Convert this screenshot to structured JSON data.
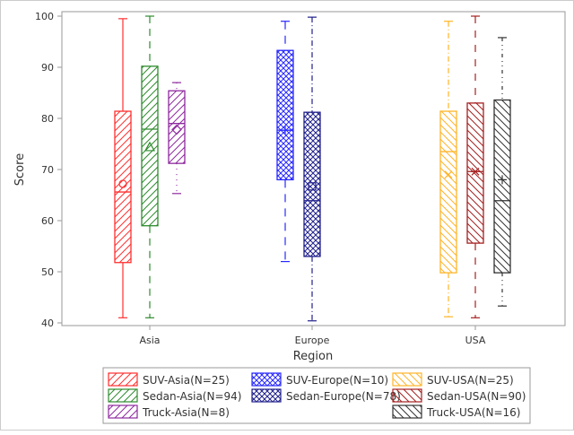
{
  "chart_data": {
    "type": "box",
    "title": "",
    "xlabel": "Region",
    "ylabel": "Score",
    "ylim": [
      40,
      100
    ],
    "yticks": [
      "40",
      "50",
      "60",
      "70",
      "80",
      "90",
      "100"
    ],
    "categories": [
      "Asia",
      "Europe",
      "USA"
    ],
    "grid": false,
    "legend_position": "bottom",
    "series": [
      {
        "name": "SUV-Asia(N=25)",
        "category": "Asia",
        "color": "#ff3030",
        "pattern": "hatch-right",
        "marker": "circle",
        "min": 41,
        "q1": 51.8,
        "median": 65.6,
        "mean": 67.2,
        "q3": 81.4,
        "max": 99.5
      },
      {
        "name": "Sedan-Asia(N=94)",
        "category": "Asia",
        "color": "#2e8b2e",
        "pattern": "hatch-right",
        "marker": "triangle",
        "min": 41,
        "q1": 59,
        "median": 77.9,
        "mean": 74.4,
        "q3": 90.2,
        "max": 100
      },
      {
        "name": "Truck-Asia(N=8)",
        "category": "Asia",
        "color": "#8e2a9e",
        "pattern": "hatch-right",
        "marker": "diamond",
        "min": 65.3,
        "q1": 71.2,
        "median": 79,
        "mean": 77.8,
        "q3": 85.4,
        "max": 87
      },
      {
        "name": "SUV-Europe(N=10)",
        "category": "Europe",
        "color": "#2828ff",
        "pattern": "crosshatch",
        "marker": "plus",
        "min": 52,
        "q1": 68,
        "median": 77.7,
        "mean": 77.7,
        "q3": 93.3,
        "max": 99
      },
      {
        "name": "Sedan-Europe(N=78)",
        "category": "Europe",
        "color": "#20208c",
        "pattern": "crosshatch",
        "marker": "square",
        "min": 40.4,
        "q1": 53,
        "median": 63.9,
        "mean": 66.7,
        "q3": 81.2,
        "max": 99.8
      },
      {
        "name": "SUV-USA(N=25)",
        "category": "USA",
        "color": "#ffb428",
        "pattern": "hatch-left",
        "marker": "x",
        "min": 41.2,
        "q1": 49.8,
        "median": 73.5,
        "mean": 69,
        "q3": 81.4,
        "max": 99
      },
      {
        "name": "Sedan-USA(N=90)",
        "category": "USA",
        "color": "#a52020",
        "pattern": "hatch-left",
        "marker": "star",
        "min": 41,
        "q1": 55.6,
        "median": 69.6,
        "mean": 69.6,
        "q3": 83,
        "max": 100
      },
      {
        "name": "Truck-USA(N=16)",
        "category": "USA",
        "color": "#333333",
        "pattern": "hatch-left",
        "marker": "plus",
        "min": 43.3,
        "q1": 49.8,
        "median": 63.9,
        "mean": 68,
        "q3": 83.6,
        "max": 95.8
      }
    ]
  }
}
